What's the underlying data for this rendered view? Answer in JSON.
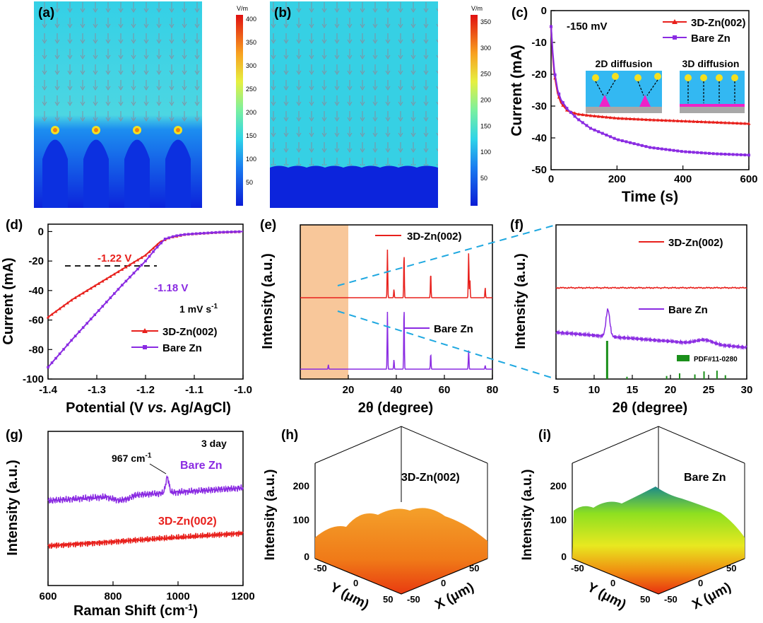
{
  "colors": {
    "red": "#e8201c",
    "purple": "#8a2be2",
    "blue_dash": "#1fa8e0",
    "green": "#1a8f1a",
    "orange": "#f8c79a"
  },
  "panels": {
    "a": {
      "label": "(a)",
      "unit": "V/m",
      "ticks": [
        "400",
        "350",
        "300",
        "250",
        "200",
        "150",
        "100",
        "50"
      ]
    },
    "b": {
      "label": "(b)",
      "unit": "V/m",
      "ticks": [
        "350",
        "300",
        "250",
        "200",
        "150",
        "100",
        "50"
      ]
    },
    "c": {
      "label": "(c)",
      "note": "-150 mV",
      "xlabel": "Time (s)",
      "ylabel": "Current (mA)",
      "legend": [
        "3D-Zn(002)",
        "Bare Zn"
      ],
      "inset_left": "2D diffusion",
      "inset_right": "3D diffusion"
    },
    "d": {
      "label": "(d)",
      "xlabel_pre": "Potential (V ",
      "xlabel_it": "vs.",
      "xlabel_post": " Ag/AgCl)",
      "ylabel": "Current (mA)",
      "ann_red": "-1.22 V",
      "ann_purple": "-1.18 V",
      "rate": "1 mV s",
      "rate_sup": "-1",
      "legend": [
        "3D-Zn(002)",
        "Bare Zn"
      ]
    },
    "e": {
      "label": "(e)",
      "xlabel": "2θ (degree)",
      "ylabel": "Intensity (a.u.)",
      "legend_top": "3D-Zn(002)",
      "legend_bottom": "Bare Zn"
    },
    "f": {
      "label": "(f)",
      "xlabel": "2θ (degree)",
      "ylabel": "Intensity (a.u.)",
      "legend_top": "3D-Zn(002)",
      "legend_bottom": "Bare Zn",
      "pdf": "PDF#11-0280"
    },
    "g": {
      "label": "(g)",
      "xlabel": "Raman Shift (cm",
      "xlabel_sup": "-1",
      "xlabel_end": ")",
      "ylabel": "Intensity (a.u.)",
      "days": "3 day",
      "peak": "967 cm",
      "peak_sup": "-1",
      "name_purple": "Bare Zn",
      "name_red": "3D-Zn(002)"
    },
    "h": {
      "label": "(h)",
      "name": "3D-Zn(002)",
      "zlabel": "Intensity (a.u.)",
      "zticks": [
        "0",
        "100",
        "200"
      ],
      "ylabel": "Y (μm)",
      "xlabel": "X (μm)",
      "yticks": [
        "-50",
        "0",
        "50"
      ],
      "xticks": [
        "-50",
        "0",
        "50"
      ]
    },
    "i": {
      "label": "(i)",
      "name": "Bare Zn",
      "zlabel": "Intensity (a.u.)",
      "zticks": [
        "0",
        "100",
        "200"
      ],
      "ylabel": "Y (μm)",
      "xlabel": "X (μm)",
      "yticks": [
        "-50",
        "0",
        "50"
      ],
      "xticks": [
        "-50",
        "0",
        "50"
      ]
    }
  },
  "chart_data": [
    {
      "panel": "c",
      "type": "line",
      "title": "",
      "xlabel": "Time (s)",
      "ylabel": "Current (mA)",
      "xlim": [
        0,
        600
      ],
      "ylim": [
        -50,
        0
      ],
      "xticks": [
        0,
        200,
        400,
        600
      ],
      "yticks": [
        0,
        -10,
        -20,
        -30,
        -40,
        -50
      ],
      "series": [
        {
          "name": "3D-Zn(002)",
          "x": [
            0,
            5,
            10,
            20,
            30,
            50,
            80,
            120,
            200,
            300,
            400,
            500,
            600
          ],
          "values": [
            -5,
            -14,
            -20,
            -26,
            -29,
            -31.5,
            -32.5,
            -33,
            -33.8,
            -34.3,
            -34.7,
            -35.1,
            -35.5
          ]
        },
        {
          "name": "Bare Zn",
          "x": [
            0,
            5,
            10,
            20,
            30,
            50,
            80,
            120,
            200,
            300,
            400,
            500,
            600
          ],
          "values": [
            -5,
            -13,
            -19,
            -25,
            -28,
            -31,
            -34,
            -37,
            -40.5,
            -43,
            -44.3,
            -45,
            -45.4
          ]
        }
      ]
    },
    {
      "panel": "d",
      "type": "line",
      "title": "",
      "xlabel": "Potential (V vs. Ag/AgCl)",
      "ylabel": "Current (mA)",
      "xlim": [
        -1.4,
        -1.0
      ],
      "ylim": [
        -100,
        5
      ],
      "xticks": [
        -1.4,
        -1.3,
        -1.2,
        -1.1,
        -1.0
      ],
      "yticks": [
        0,
        -20,
        -40,
        -60,
        -80,
        -100
      ],
      "annotations": [
        {
          "text": "-1.22 V",
          "x": -1.22,
          "y": -20
        },
        {
          "text": "-1.18 V",
          "x": -1.18,
          "y": -20
        }
      ],
      "series": [
        {
          "name": "3D-Zn(002)",
          "x": [
            -1.4,
            -1.35,
            -1.3,
            -1.25,
            -1.2,
            -1.17,
            -1.15,
            -1.12,
            -1.1,
            -1.05,
            -1.0
          ],
          "values": [
            -58,
            -46,
            -36,
            -26,
            -16,
            -7,
            -4,
            -2,
            -1.5,
            -0.5,
            0
          ]
        },
        {
          "name": "Bare Zn",
          "x": [
            -1.4,
            -1.35,
            -1.3,
            -1.25,
            -1.2,
            -1.18,
            -1.16,
            -1.14,
            -1.12,
            -1.1,
            -1.05,
            -1.0
          ],
          "values": [
            -92,
            -73,
            -55,
            -37,
            -20,
            -12,
            -5,
            -3,
            -2,
            -1.5,
            -0.5,
            0
          ]
        }
      ]
    },
    {
      "panel": "e",
      "type": "line",
      "title": "",
      "xlabel": "2θ (degree)",
      "ylabel": "Intensity (a.u.)",
      "xlim": [
        0,
        80
      ],
      "xticks": [
        20,
        40,
        60,
        80
      ],
      "highlight_range": [
        0,
        20
      ],
      "series": [
        {
          "name": "3D-Zn(002)",
          "peaks": [
            {
              "x": 36.3,
              "h": 0.85
            },
            {
              "x": 39.0,
              "h": 0.15
            },
            {
              "x": 43.2,
              "h": 0.8
            },
            {
              "x": 54.3,
              "h": 0.45
            },
            {
              "x": 70.1,
              "h": 0.8
            },
            {
              "x": 70.6,
              "h": 0.35
            },
            {
              "x": 77.0,
              "h": 0.18
            }
          ]
        },
        {
          "name": "Bare Zn",
          "peaks": [
            {
              "x": 11.7,
              "h": 0.07
            },
            {
              "x": 36.3,
              "h": 0.9
            },
            {
              "x": 39.0,
              "h": 0.15
            },
            {
              "x": 43.2,
              "h": 1.0
            },
            {
              "x": 54.3,
              "h": 0.25
            },
            {
              "x": 70.1,
              "h": 0.3
            },
            {
              "x": 77.0,
              "h": 0.06
            }
          ]
        }
      ]
    },
    {
      "panel": "f",
      "type": "line",
      "title": "",
      "xlabel": "2θ (degree)",
      "ylabel": "Intensity (a.u.)",
      "xlim": [
        5,
        30
      ],
      "xticks": [
        5,
        10,
        15,
        20,
        25,
        30
      ],
      "series": [
        {
          "name": "3D-Zn(002)",
          "peaks": []
        },
        {
          "name": "Bare Zn",
          "peaks": [
            {
              "x": 11.8,
              "h": 1.0
            },
            {
              "x": 24.5,
              "h": 0.12
            }
          ]
        }
      ],
      "reference": {
        "name": "PDF#11-0280",
        "sticks": [
          {
            "x": 11.7,
            "h": 1.0
          },
          {
            "x": 21.2,
            "h": 0.15
          },
          {
            "x": 23.2,
            "h": 0.12
          },
          {
            "x": 24.4,
            "h": 0.2
          },
          {
            "x": 26.1,
            "h": 0.22
          },
          {
            "x": 27.2,
            "h": 0.1
          },
          {
            "x": 14.3,
            "h": 0.06
          },
          {
            "x": 19.5,
            "h": 0.08
          }
        ]
      }
    },
    {
      "panel": "g",
      "type": "line",
      "title": "",
      "xlabel": "Raman Shift (cm-1)",
      "ylabel": "Intensity (a.u.)",
      "xlim": [
        600,
        1200
      ],
      "xticks": [
        600,
        800,
        1000,
        1200
      ],
      "annotations": [
        {
          "text": "967 cm-1",
          "x": 967
        }
      ],
      "series": [
        {
          "name": "Bare Zn",
          "peak_x": 967
        },
        {
          "name": "3D-Zn(002)"
        }
      ]
    }
  ]
}
